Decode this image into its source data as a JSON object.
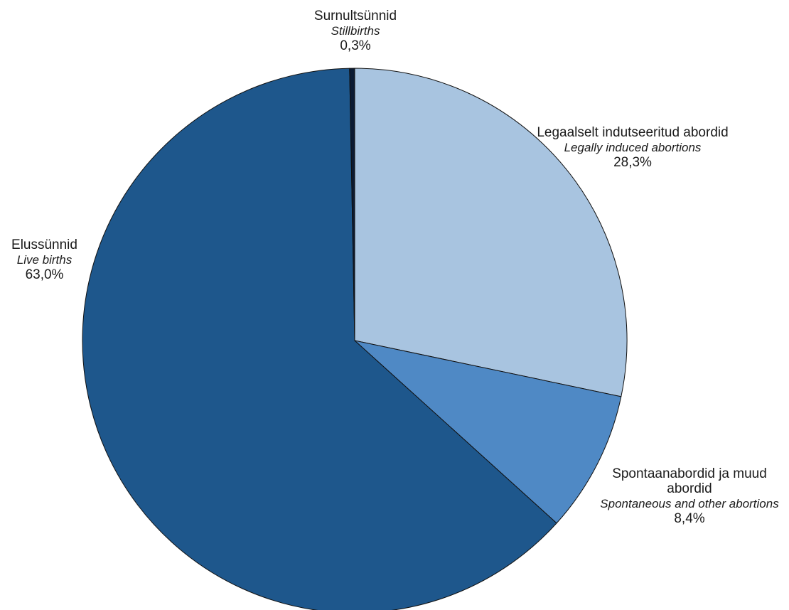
{
  "chart_data": {
    "type": "pie",
    "title": "",
    "slices": [
      {
        "key": "legal",
        "label_et": "Legaalselt indutseeritud abordid",
        "label_en": "Legally induced abortions",
        "value": 28.3,
        "pct_label": "28,3%",
        "color": "#a8c4e0"
      },
      {
        "key": "spont",
        "label_et": "Spontaanabordid ja muud abordid",
        "label_en": "Spontaneous and other abortions",
        "value": 8.4,
        "pct_label": "8,4%",
        "color": "#4f89c5"
      },
      {
        "key": "live",
        "label_et": "Elussünnid",
        "label_en": "Live births",
        "value": 63.0,
        "pct_label": "63,0%",
        "color": "#1e578c"
      },
      {
        "key": "stillbirths",
        "label_et": "Surnultsünnid",
        "label_en": "Stillbirths",
        "value": 0.3,
        "pct_label": "0,3%",
        "color": "#0c1b33"
      }
    ]
  }
}
